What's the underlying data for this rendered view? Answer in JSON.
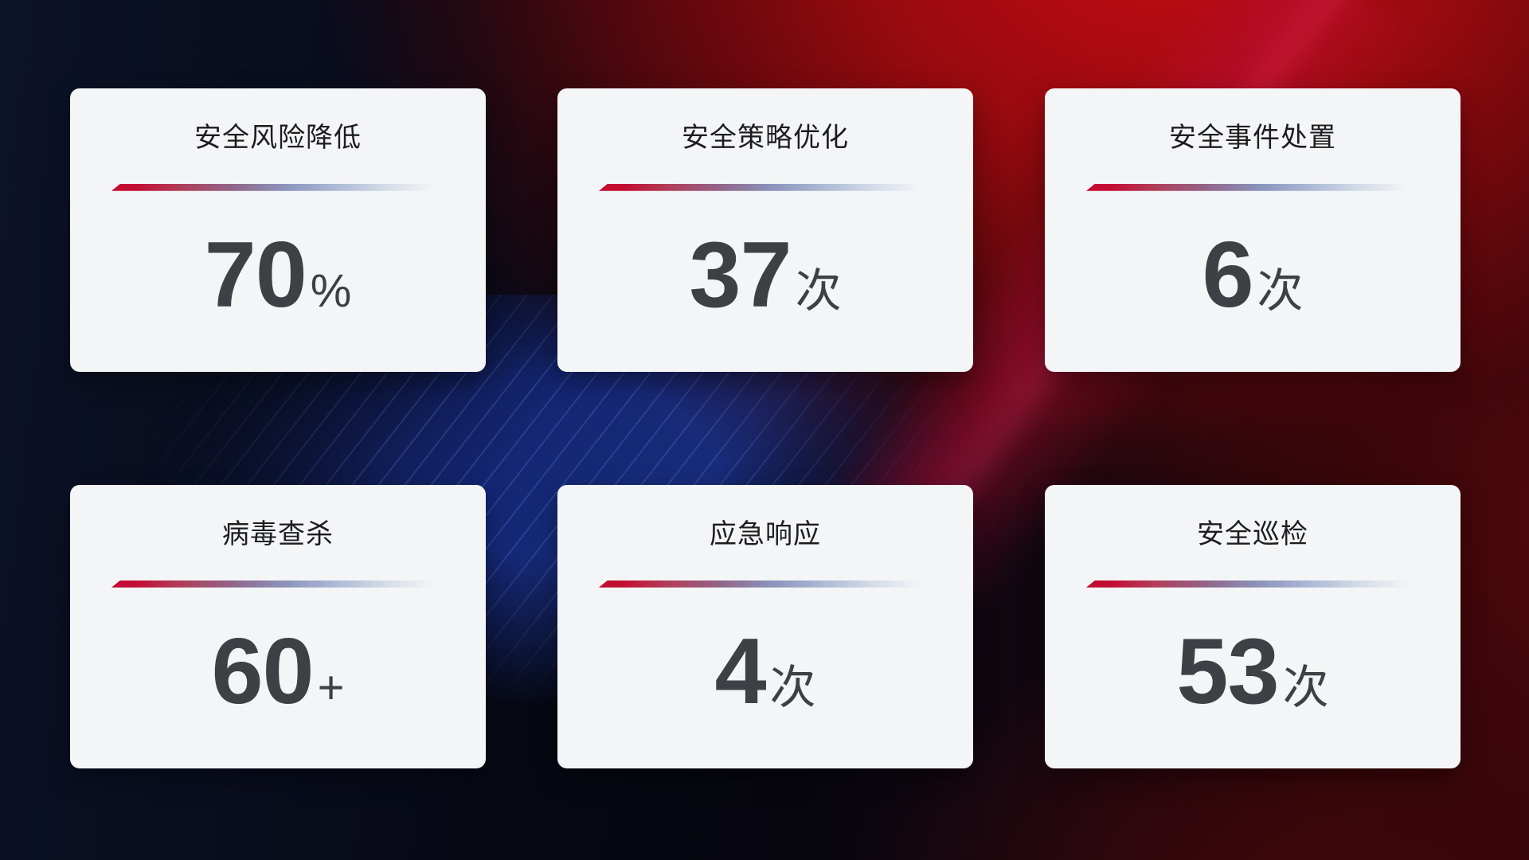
{
  "cards": [
    {
      "title": "安全风险降低",
      "value": "70",
      "suffix": "%"
    },
    {
      "title": "安全策略优化",
      "value": "37",
      "suffix": "次"
    },
    {
      "title": "安全事件处置",
      "value": "6",
      "suffix": "次"
    },
    {
      "title": "病毒查杀",
      "value": "60",
      "suffix": "+"
    },
    {
      "title": "应急响应",
      "value": "4",
      "suffix": "次"
    },
    {
      "title": "安全巡检",
      "value": "53",
      "suffix": "次"
    }
  ],
  "colors": {
    "card_background": "#f4f5f7",
    "title_text": "#1d1d1f",
    "value_text": "#3d4045",
    "divider_red": "#c30c31",
    "divider_blue": "#8b93bc",
    "background_navy": "#0a0e20",
    "background_red": "#b00d12",
    "background_blue_band": "#22409f"
  }
}
